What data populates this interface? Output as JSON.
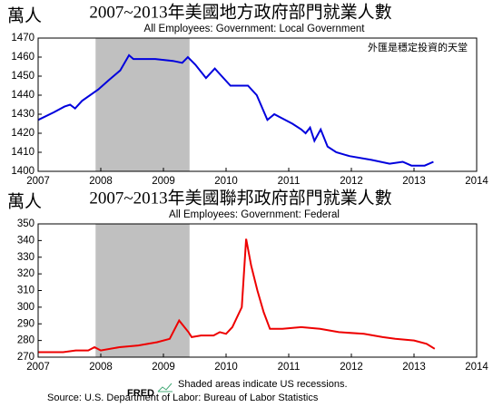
{
  "chart_data": [
    {
      "type": "line",
      "title": "2007~2013年美國地方政府部門就業人數",
      "subtitle": "All Employees: Government: Local Government",
      "y_label": "萬人",
      "annotation": "外匯是穩定投資的天堂",
      "color": "#0000dd",
      "shade_color": "#c0c0c0",
      "shaded_x": [
        2007.917,
        2009.417
      ],
      "grid": false,
      "x": [
        2007.0,
        2007.25,
        2007.42,
        2007.51,
        2007.59,
        2007.7,
        2007.96,
        2008.13,
        2008.31,
        2008.45,
        2008.52,
        2008.66,
        2008.87,
        2009.15,
        2009.3,
        2009.39,
        2009.51,
        2009.68,
        2009.82,
        2009.93,
        2010.07,
        2010.35,
        2010.49,
        2010.66,
        2010.77,
        2011.06,
        2011.2,
        2011.27,
        2011.34,
        2011.41,
        2011.51,
        2011.62,
        2011.76,
        2011.97,
        2012.32,
        2012.61,
        2012.82,
        2012.96,
        2013.17,
        2013.31
      ],
      "values": [
        1427,
        1431,
        1434,
        1435,
        1433,
        1437,
        1443,
        1448,
        1453,
        1461,
        1459,
        1459,
        1459,
        1458,
        1457,
        1460,
        1456,
        1449,
        1454,
        1450,
        1445,
        1445,
        1440,
        1427,
        1430,
        1425,
        1422,
        1420,
        1423,
        1416,
        1422,
        1413,
        1410,
        1408,
        1406,
        1404,
        1405,
        1403,
        1403,
        1405
      ],
      "xlim": [
        2007,
        2014
      ],
      "xticks": [
        2007,
        2008,
        2009,
        2010,
        2011,
        2012,
        2013,
        2014
      ],
      "ylim": [
        1400,
        1470
      ],
      "yticks": [
        1400,
        1410,
        1420,
        1430,
        1440,
        1450,
        1460,
        1470
      ]
    },
    {
      "type": "line",
      "title": "2007~2013年美國聯邦政府部門就業人數",
      "subtitle": "All Employees: Government: Federal",
      "y_label": "萬人",
      "color": "#ee0000",
      "shade_color": "#c0c0c0",
      "shaded_x": [
        2007.917,
        2009.417
      ],
      "grid": false,
      "x": [
        2007.0,
        2007.4,
        2007.6,
        2007.8,
        2007.9,
        2008.0,
        2008.3,
        2008.6,
        2008.9,
        2009.1,
        2009.25,
        2009.4,
        2009.45,
        2009.6,
        2009.8,
        2009.9,
        2010.0,
        2010.1,
        2010.25,
        2010.32,
        2010.4,
        2010.5,
        2010.6,
        2010.7,
        2010.9,
        2011.2,
        2011.5,
        2011.8,
        2012.2,
        2012.5,
        2012.7,
        2013.0,
        2013.2,
        2013.33
      ],
      "values": [
        273,
        273,
        274,
        274,
        276,
        274,
        276,
        277,
        279,
        281,
        292,
        285,
        282,
        283,
        283,
        285,
        284,
        288,
        300,
        341,
        325,
        310,
        297,
        287,
        287,
        288,
        287,
        285,
        284,
        282,
        281,
        280,
        278,
        275
      ],
      "xlim": [
        2007,
        2014
      ],
      "xticks": [
        2007,
        2008,
        2009,
        2010,
        2011,
        2012,
        2013,
        2014
      ],
      "ylim": [
        270,
        350
      ],
      "yticks": [
        270,
        280,
        290,
        300,
        310,
        320,
        330,
        340,
        350
      ]
    }
  ],
  "footer": {
    "logo": "FRED",
    "note": "Shaded areas indicate US recessions.",
    "source": "Source: U.S. Department of Labor: Bureau of Labor Statistics"
  }
}
